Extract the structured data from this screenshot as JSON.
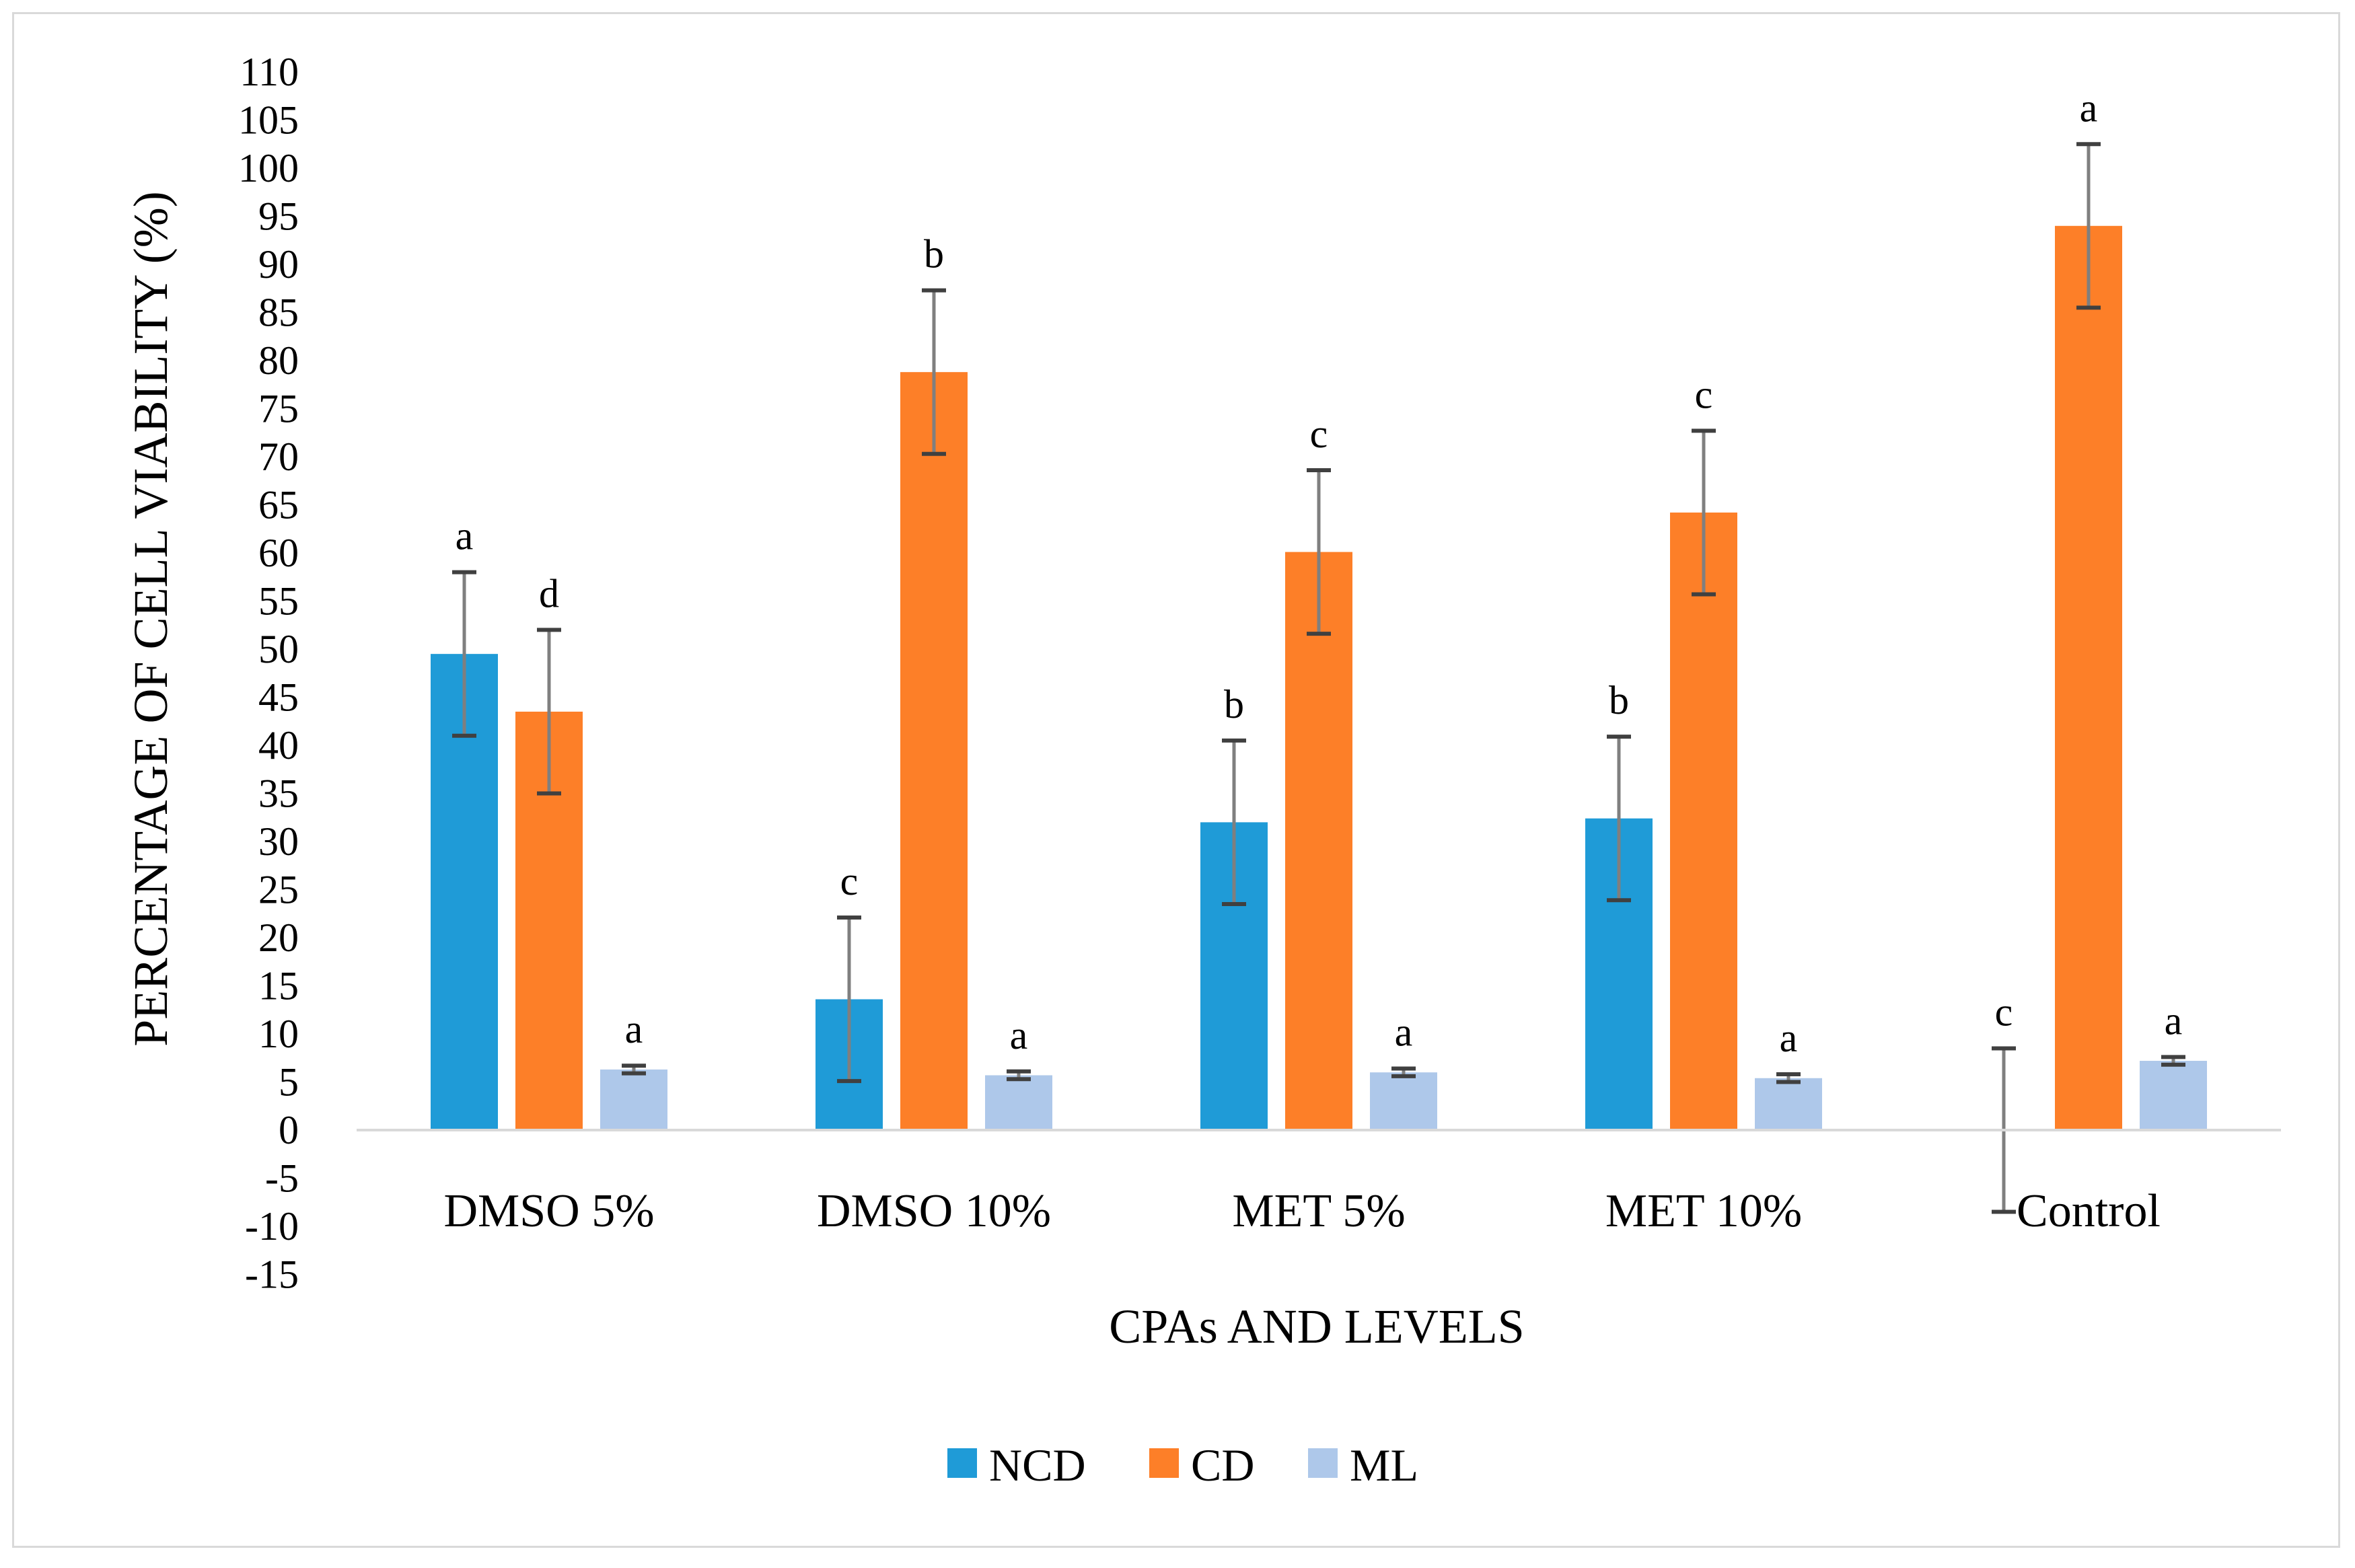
{
  "chart_data": {
    "type": "bar",
    "title": "",
    "xlabel": "CPAs AND LEVELS",
    "ylabel": "PERCENTAGE OF CELL VIABILITY (%)",
    "ylim": [
      -15,
      110
    ],
    "ytick_step": 5,
    "categories": [
      "DMSO 5%",
      "DMSO 10%",
      "MET 5%",
      "MET 10%",
      "Control"
    ],
    "series": [
      {
        "name": "NCD",
        "color": "#1f9bd7",
        "values": [
          49.5,
          13.6,
          32.0,
          32.4,
          0
        ],
        "errors": [
          8.5,
          8.5,
          8.5,
          8.5,
          8.5
        ],
        "letters": [
          "a",
          "c",
          "b",
          "b",
          "c"
        ]
      },
      {
        "name": "CD",
        "color": "#fd7f28",
        "values": [
          43.5,
          78.8,
          60.1,
          64.2,
          94.0
        ],
        "errors": [
          8.5,
          8.5,
          8.5,
          8.5,
          8.5
        ],
        "letters": [
          "d",
          "b",
          "c",
          "c",
          "a"
        ]
      },
      {
        "name": "ML",
        "color": "#aec8ea",
        "values": [
          6.3,
          5.7,
          6.0,
          5.4,
          7.2
        ],
        "errors": [
          0.4,
          0.4,
          0.4,
          0.4,
          0.4
        ],
        "letters": [
          "a",
          "a",
          "a",
          "a",
          "a"
        ]
      }
    ],
    "legend_position": "bottom",
    "grid": false
  }
}
